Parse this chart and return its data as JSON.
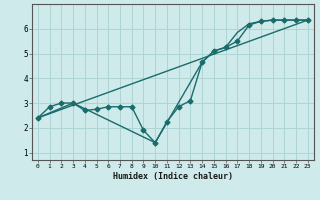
{
  "xlabel": "Humidex (Indice chaleur)",
  "ylabel": "",
  "background_color": "#ceeaea",
  "grid_color": "#aed4d4",
  "line_color": "#1a6b6b",
  "xlim": [
    -0.5,
    23.5
  ],
  "ylim": [
    0.7,
    7.0
  ],
  "yticks": [
    1,
    2,
    3,
    4,
    5,
    6
  ],
  "xticks": [
    0,
    1,
    2,
    3,
    4,
    5,
    6,
    7,
    8,
    9,
    10,
    11,
    12,
    13,
    14,
    15,
    16,
    17,
    18,
    19,
    20,
    21,
    22,
    23
  ],
  "line1_x": [
    0,
    1,
    2,
    3,
    4,
    5,
    6,
    7,
    8,
    9,
    10,
    11,
    12,
    13,
    14,
    15,
    16,
    17,
    18,
    19,
    20,
    21,
    22,
    23
  ],
  "line1_y": [
    2.4,
    2.85,
    3.0,
    3.0,
    2.7,
    2.75,
    2.85,
    2.85,
    2.85,
    1.9,
    1.4,
    2.25,
    2.85,
    3.1,
    4.65,
    5.1,
    5.25,
    5.5,
    6.15,
    6.3,
    6.35,
    6.35,
    6.35,
    6.35
  ],
  "line2_x": [
    0,
    3,
    10,
    14,
    15,
    16,
    17,
    18,
    19,
    20,
    21,
    22,
    23
  ],
  "line2_y": [
    2.4,
    3.0,
    1.4,
    4.65,
    5.1,
    5.25,
    5.85,
    6.2,
    6.3,
    6.35,
    6.35,
    6.35,
    6.35
  ],
  "line3_x": [
    0,
    23
  ],
  "line3_y": [
    2.4,
    6.35
  ],
  "markersize": 2.5,
  "linewidth": 1.0
}
